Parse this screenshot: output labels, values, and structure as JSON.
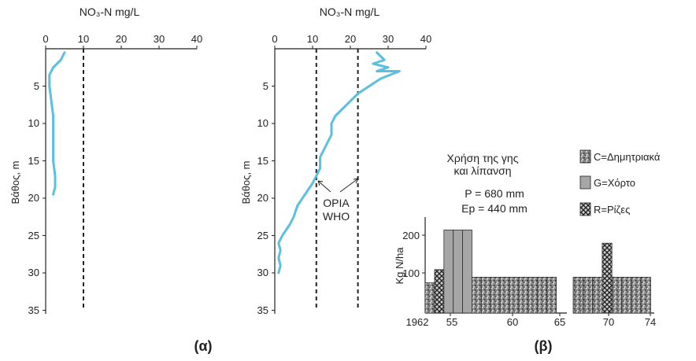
{
  "chart_data": [
    {
      "type": "line",
      "panel_label": "(α)",
      "title": "NO₃-N mg/L",
      "xlabel": "NO₃-N mg/L",
      "ylabel": "Βάθος, m",
      "xlim": [
        0,
        40
      ],
      "ylim": [
        35,
        0
      ],
      "x_ticks": [
        "0",
        "10",
        "20",
        "30",
        "40"
      ],
      "y_ticks": [
        "5",
        "10",
        "15",
        "20",
        "25",
        "30",
        "35"
      ],
      "reference_lines": [
        {
          "x": 10,
          "style": "dashed"
        }
      ],
      "series": [
        {
          "color": "#5bbfe0",
          "x": [
            5,
            4,
            2,
            1,
            1,
            1.5,
            2,
            2,
            2,
            2,
            2.5,
            2.5,
            2
          ],
          "y": [
            0.5,
            1.5,
            2.5,
            3.5,
            5,
            7,
            9,
            11,
            13,
            15,
            17,
            18.5,
            19.5
          ]
        }
      ]
    },
    {
      "type": "line",
      "panel_label": "",
      "title": "NO₃-N mg/L",
      "xlabel": "NO₃-N mg/L",
      "ylabel": "Βάθος, m",
      "xlim": [
        0,
        40
      ],
      "ylim": [
        35,
        0
      ],
      "x_ticks": [
        "0",
        "10",
        "20",
        "30",
        "40"
      ],
      "y_ticks": [
        "5",
        "10",
        "15",
        "20",
        "25",
        "30",
        "35"
      ],
      "reference_lines": [
        {
          "x": 11,
          "style": "dashed"
        },
        {
          "x": 22,
          "style": "dashed"
        }
      ],
      "annotation": {
        "line1": "ΟΡΙΑ",
        "line2": "WHO"
      },
      "series": [
        {
          "color": "#5bbfe0",
          "x": [
            27,
            29,
            26,
            30,
            27,
            33,
            28,
            22,
            18,
            16,
            15,
            15,
            14,
            13,
            12,
            12,
            11,
            10,
            8,
            6,
            5,
            4,
            2,
            1,
            1.5,
            1,
            1.5,
            1
          ],
          "y": [
            0.5,
            1.5,
            2,
            2.5,
            3,
            3,
            4,
            6,
            8,
            9,
            10,
            11.5,
            12.5,
            13.5,
            14.5,
            16,
            17,
            18,
            19.5,
            21,
            22.5,
            23.5,
            25,
            26,
            27,
            28,
            29,
            30
          ]
        }
      ]
    },
    {
      "type": "bar",
      "panel_label": "(β)",
      "title_line1": "Χρήση της γης",
      "title_line2": "και λίπανση",
      "params": [
        "P = 680 mm",
        "Ep = 440 mm"
      ],
      "ylabel": "Kg N/ha",
      "ylim": [
        0,
        250
      ],
      "y_ticks": [
        "100",
        "200"
      ],
      "x_ticks": [
        "1962",
        "55",
        "60",
        "65",
        "70",
        "74"
      ],
      "legend": [
        {
          "code": "C",
          "label": "C=Δημητριακά",
          "pattern": "speckle"
        },
        {
          "code": "G",
          "label": "G=Χόρτο",
          "pattern": "gray"
        },
        {
          "code": "R",
          "label": "R=Ρίζες",
          "pattern": "cross"
        }
      ],
      "categories": [
        "1952",
        "1953",
        "1954",
        "1955",
        "1956",
        "1957",
        "1958",
        "1959",
        "1960",
        "1961",
        "1962",
        "1963",
        "1964",
        "1965",
        "1967",
        "1968",
        "1969",
        "1970",
        "1971",
        "1972",
        "1973",
        "1974"
      ],
      "values": [
        80,
        115,
        220,
        220,
        220,
        95,
        95,
        95,
        95,
        95,
        95,
        95,
        95,
        95,
        95,
        95,
        95,
        185,
        95,
        95,
        95,
        95
      ],
      "crop": [
        "C",
        "R",
        "G",
        "G",
        "G",
        "C",
        "C",
        "C",
        "C",
        "C",
        "C",
        "C",
        "C",
        "C",
        "C",
        "C",
        "C",
        "R",
        "C",
        "C",
        "C",
        "C"
      ]
    }
  ]
}
